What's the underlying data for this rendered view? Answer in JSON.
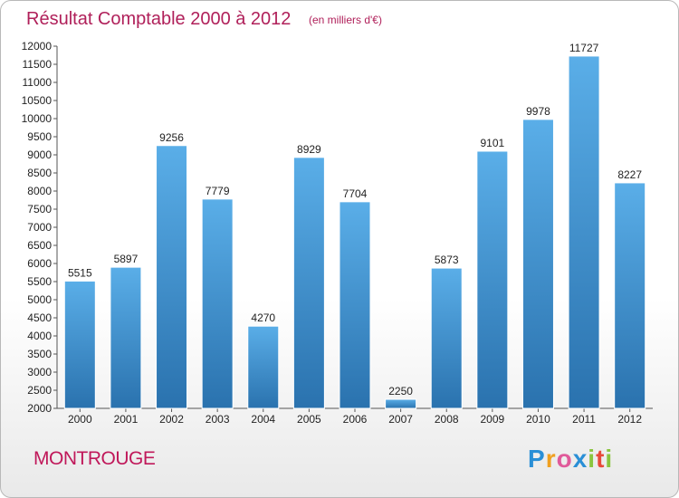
{
  "chart_data": {
    "type": "bar",
    "title": "Résultat Comptable 2000 à 2012",
    "subtitle": "(en milliers d'€)",
    "categories": [
      "2000",
      "2001",
      "2002",
      "2003",
      "2004",
      "2005",
      "2006",
      "2007",
      "2008",
      "2009",
      "2010",
      "2011",
      "2012"
    ],
    "values": [
      5515,
      5897,
      9256,
      7779,
      4270,
      8929,
      7704,
      2250,
      5873,
      9101,
      9978,
      11727,
      8227
    ],
    "ylim": [
      2000,
      12000
    ],
    "yticks": [
      2000,
      2500,
      3000,
      3500,
      4000,
      4500,
      5000,
      5500,
      6000,
      6500,
      7000,
      7500,
      8000,
      8500,
      9000,
      9500,
      10000,
      10500,
      11000,
      11500,
      12000
    ],
    "xlabel": "",
    "ylabel": "",
    "grid": false,
    "bar_color_top": "#5aaee8",
    "bar_color_bottom": "#2a72ae"
  },
  "footer": {
    "city": "MONTROUGE",
    "logo": {
      "letters": [
        "P",
        "r",
        "o",
        "x",
        "i",
        "t",
        "i"
      ],
      "colors": [
        "#2a8fd6",
        "#f0a020",
        "#e05a9a",
        "#2a8fd6",
        "#8bc53f",
        "#e84a3a",
        "#8bc53f"
      ]
    }
  }
}
